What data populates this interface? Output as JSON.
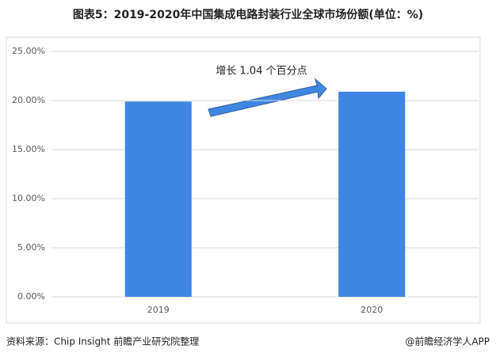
{
  "chart_data": {
    "type": "bar",
    "title": "图表5：2019-2020年中国集成电路封装行业全球市场份额(单位：%)",
    "categories": [
      "2019",
      "2020"
    ],
    "values": [
      19.9,
      20.9
    ],
    "color": "#3f86e2",
    "ylim": [
      0,
      25
    ],
    "yticks": [
      {
        "value": 0,
        "label": "0.00%"
      },
      {
        "value": 5,
        "label": "5.00%"
      },
      {
        "value": 10,
        "label": "10.00%"
      },
      {
        "value": 15,
        "label": "15.00%"
      },
      {
        "value": 20,
        "label": "20.00%"
      },
      {
        "value": 25,
        "label": "25.00%"
      }
    ],
    "grid": true,
    "annotation": "增长 1.04 个百分点",
    "source": "资料来源：Chip Insight 前瞻产业研究院整理",
    "credit": "@前瞻经济学人APP"
  }
}
